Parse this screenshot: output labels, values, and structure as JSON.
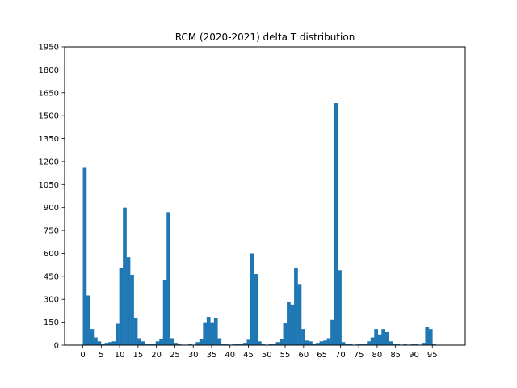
{
  "chart_data": {
    "type": "bar",
    "title": "RCM (2020-2021) delta T distribution",
    "xlabel": "",
    "ylabel": "",
    "bar_color": "#1f77b4",
    "grid": false,
    "legend": "none",
    "xlim": [
      -4.95,
      103.95
    ],
    "ylim": [
      0,
      1950
    ],
    "xticks": [
      0,
      5,
      10,
      15,
      20,
      25,
      30,
      35,
      40,
      45,
      50,
      55,
      60,
      65,
      70,
      75,
      80,
      85,
      90,
      95
    ],
    "xtick_labels": [
      "0",
      "5",
      "10",
      "15",
      "20",
      "25",
      "30",
      "35",
      "40",
      "45",
      "50",
      "55",
      "60",
      "65",
      "70",
      "75",
      "80",
      "85",
      "90",
      "95"
    ],
    "yticks": [
      0,
      150,
      300,
      450,
      600,
      750,
      900,
      1050,
      1200,
      1350,
      1500,
      1650,
      1800,
      1950
    ],
    "ytick_labels": [
      "0",
      "150",
      "300",
      "450",
      "600",
      "750",
      "900",
      "1050",
      "1200",
      "1350",
      "1500",
      "1650",
      "1800",
      "1950"
    ],
    "bins": {
      "start": 0,
      "width": 0.99,
      "count": 100
    },
    "values": [
      1160,
      325,
      105,
      50,
      25,
      10,
      15,
      20,
      25,
      140,
      505,
      900,
      575,
      460,
      180,
      45,
      25,
      5,
      10,
      10,
      25,
      40,
      425,
      870,
      45,
      15,
      5,
      3,
      3,
      8,
      3,
      20,
      40,
      150,
      185,
      150,
      175,
      45,
      10,
      5,
      3,
      5,
      10,
      5,
      15,
      35,
      600,
      465,
      25,
      10,
      3,
      10,
      5,
      20,
      40,
      145,
      285,
      265,
      505,
      400,
      105,
      30,
      25,
      10,
      15,
      25,
      30,
      45,
      165,
      1580,
      490,
      20,
      10,
      5,
      3,
      5,
      5,
      10,
      25,
      50,
      105,
      70,
      105,
      85,
      25,
      5,
      5,
      3,
      5,
      3,
      5,
      5,
      3,
      15,
      120,
      105,
      5,
      0,
      0,
      0
    ]
  }
}
